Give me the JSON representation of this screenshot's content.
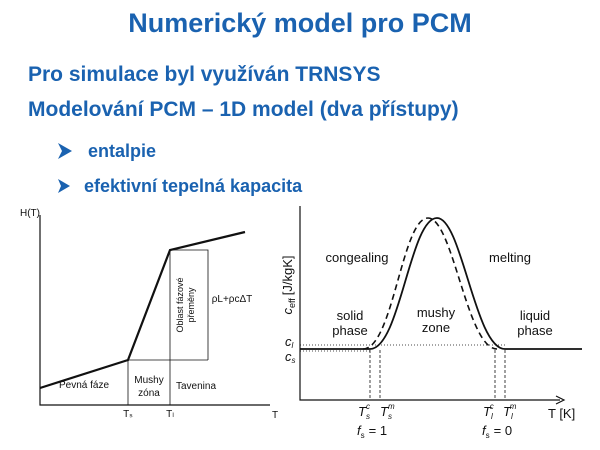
{
  "title": "Numerický model pro PCM",
  "bullets": [
    "Pro simulace byl využíván TRNSYS",
    "Modelování PCM – 1D model (dva přístupy)"
  ],
  "sub_bullets": [
    "entalpie",
    "efektivní tepelná kapacita"
  ],
  "left_diagram": {
    "y_axis": "H(T)",
    "x_axis": "T",
    "regions": [
      "Pevná fáze",
      "Mushy",
      "zóna",
      "Tavenina"
    ],
    "ticks": [
      "Tₛ",
      "Tₗ"
    ],
    "band_label": [
      "Oblast fázové",
      "přeměny"
    ],
    "enthalpy_label": "ρL+ρcΔT"
  },
  "right_diagram": {
    "y_axis": {
      "symbol": "c",
      "sub": "eff",
      "unit": "[J/kgK]"
    },
    "x_axis": "T [K]",
    "curves": [
      "congealing",
      "melting"
    ],
    "phases": [
      [
        "solid",
        "phase"
      ],
      [
        "mushy",
        "zone"
      ],
      [
        "liquid",
        "phase"
      ]
    ],
    "levels": [
      {
        "symbol": "c",
        "sub": "l"
      },
      {
        "symbol": "c",
        "sub": "s"
      }
    ],
    "temps": [
      {
        "symbol": "T",
        "sub": "s",
        "sup": "c"
      },
      {
        "symbol": "T",
        "sub": "s",
        "sup": "m"
      },
      {
        "symbol": "T",
        "sub": "l",
        "sup": "c"
      },
      {
        "symbol": "T",
        "sub": "l",
        "sup": "m"
      }
    ],
    "fractions": [
      {
        "symbol": "f",
        "sub": "s",
        "rest": "= 1"
      },
      {
        "symbol": "f",
        "sub": "s",
        "rest": "= 0"
      }
    ]
  }
}
